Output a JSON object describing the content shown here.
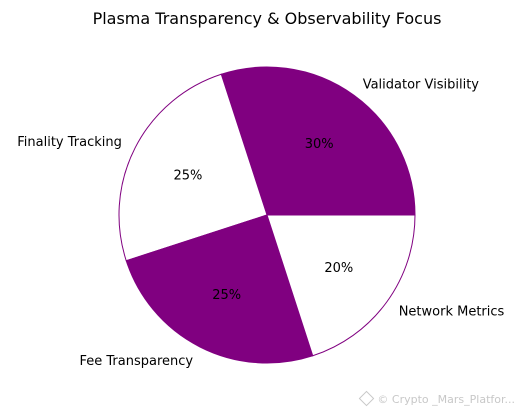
{
  "chart_data": {
    "type": "pie",
    "title": "Plasma Transparency & Observability Focus",
    "slices": [
      {
        "label": "Validator Visibility",
        "value": 30,
        "pct_label": "30%",
        "color": "#800080"
      },
      {
        "label": "Finality Tracking",
        "value": 25,
        "pct_label": "25%",
        "color": "#ffffff"
      },
      {
        "label": "Fee Transparency",
        "value": 25,
        "pct_label": "25%",
        "color": "#800080"
      },
      {
        "label": "Network Metrics",
        "value": 20,
        "pct_label": "20%",
        "color": "#ffffff"
      }
    ],
    "edge_color": "#800080",
    "legend": "none"
  },
  "watermark": {
    "text": "© Crypto _Mars_Platfor..."
  }
}
